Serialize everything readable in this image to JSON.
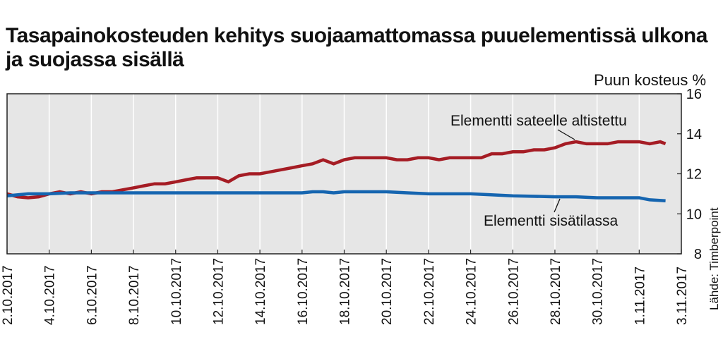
{
  "title": "Tasapainokosteuden kehitys suojaamattomassa puuelementissä ulkona ja suojassa sisällä",
  "source": "Lähde: Timberpoint",
  "chart_data": {
    "type": "line",
    "title": "Tasapainokosteuden kehitys suojaamattomassa puuelementissä ulkona ja suojassa sisällä",
    "ylabel": "Puun kosteus %",
    "ylim": [
      8,
      16
    ],
    "yticks": [
      "8",
      "10",
      "12",
      "14",
      "16"
    ],
    "xlim": [
      "2017-10-02",
      "2017-11-03"
    ],
    "xticks": [
      "2.10.2017",
      "4.10.2017",
      "6.10.2017",
      "8.10.2017",
      "10.10.2017",
      "12.10.2017",
      "14.10.2017",
      "16.10.2017",
      "18.10.2017",
      "20.10.2017",
      "22.10.2017",
      "24.10.2017",
      "26.10.2017",
      "28.10.2017",
      "30.10.2017",
      "1.11.2017",
      "3.11.2017"
    ],
    "grid": "vertical",
    "series": [
      {
        "name": "Elementti sateelle altistettu",
        "color": "#a51c24",
        "x": [
          "2017-10-02",
          "2017-10-02 12:00",
          "2017-10-03",
          "2017-10-03 12:00",
          "2017-10-04",
          "2017-10-04 12:00",
          "2017-10-05",
          "2017-10-05 12:00",
          "2017-10-06",
          "2017-10-06 12:00",
          "2017-10-07",
          "2017-10-07 12:00",
          "2017-10-08",
          "2017-10-08 12:00",
          "2017-10-09",
          "2017-10-09 12:00",
          "2017-10-10",
          "2017-10-10 12:00",
          "2017-10-11",
          "2017-10-11 12:00",
          "2017-10-12",
          "2017-10-12 12:00",
          "2017-10-13",
          "2017-10-13 12:00",
          "2017-10-14",
          "2017-10-14 12:00",
          "2017-10-15",
          "2017-10-15 12:00",
          "2017-10-16",
          "2017-10-16 12:00",
          "2017-10-17",
          "2017-10-17 12:00",
          "2017-10-18",
          "2017-10-18 12:00",
          "2017-10-19",
          "2017-10-19 12:00",
          "2017-10-20",
          "2017-10-20 12:00",
          "2017-10-21",
          "2017-10-21 12:00",
          "2017-10-22",
          "2017-10-22 12:00",
          "2017-10-23",
          "2017-10-23 12:00",
          "2017-10-24",
          "2017-10-24 12:00",
          "2017-10-25",
          "2017-10-25 12:00",
          "2017-10-26",
          "2017-10-26 12:00",
          "2017-10-27",
          "2017-10-27 12:00",
          "2017-10-28",
          "2017-10-28 12:00",
          "2017-10-29",
          "2017-10-29 12:00",
          "2017-10-30",
          "2017-10-30 12:00",
          "2017-10-31",
          "2017-10-31 12:00",
          "2017-11-01",
          "2017-11-01 12:00",
          "2017-11-02",
          "2017-11-02 06:00"
        ],
        "values": [
          11.0,
          10.85,
          10.8,
          10.85,
          11.0,
          11.1,
          11.0,
          11.1,
          11.0,
          11.1,
          11.1,
          11.2,
          11.3,
          11.4,
          11.5,
          11.5,
          11.6,
          11.7,
          11.8,
          11.8,
          11.8,
          11.6,
          11.9,
          12.0,
          12.0,
          12.1,
          12.2,
          12.3,
          12.4,
          12.5,
          12.7,
          12.5,
          12.7,
          12.8,
          12.8,
          12.8,
          12.8,
          12.7,
          12.7,
          12.8,
          12.8,
          12.7,
          12.8,
          12.8,
          12.8,
          12.8,
          13.0,
          13.0,
          13.1,
          13.1,
          13.2,
          13.2,
          13.3,
          13.5,
          13.6,
          13.5,
          13.5,
          13.5,
          13.6,
          13.6,
          13.6,
          13.5,
          13.6,
          13.5
        ]
      },
      {
        "name": "Elementti sisätilassa",
        "color": "#1565b0",
        "x": [
          "2017-10-02",
          "2017-10-03",
          "2017-10-04",
          "2017-10-05",
          "2017-10-06",
          "2017-10-08",
          "2017-10-10",
          "2017-10-12",
          "2017-10-14",
          "2017-10-16",
          "2017-10-16 12:00",
          "2017-10-17",
          "2017-10-17 12:00",
          "2017-10-18",
          "2017-10-20",
          "2017-10-21",
          "2017-10-22",
          "2017-10-23",
          "2017-10-24",
          "2017-10-26",
          "2017-10-28",
          "2017-10-29",
          "2017-10-30",
          "2017-10-31",
          "2017-11-01",
          "2017-11-01 12:00",
          "2017-11-02 06:00"
        ],
        "values": [
          10.9,
          11.0,
          11.0,
          11.05,
          11.05,
          11.05,
          11.05,
          11.05,
          11.05,
          11.05,
          11.1,
          11.1,
          11.05,
          11.1,
          11.1,
          11.05,
          11.0,
          11.0,
          11.0,
          10.9,
          10.85,
          10.85,
          10.8,
          10.8,
          10.8,
          10.7,
          10.65
        ]
      }
    ],
    "annotations": [
      "Elementti sateelle altistettu",
      "Elementti sisätilassa"
    ]
  }
}
